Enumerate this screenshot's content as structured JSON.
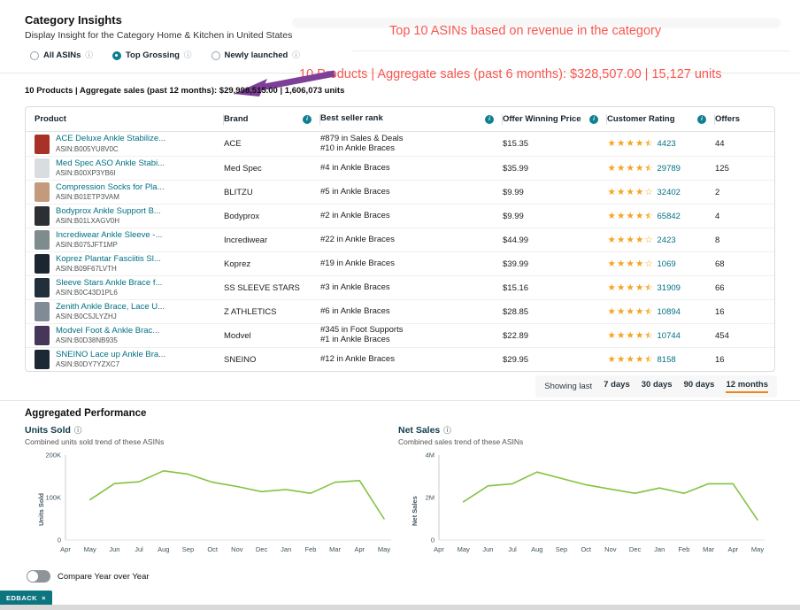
{
  "page": {
    "title": "Category Insights",
    "subtitle": "Display Insight for the Category Home & Kitchen in United States"
  },
  "icons": {
    "info": "i",
    "info_outline": "ⓘ",
    "close": "×"
  },
  "filters": {
    "options": [
      {
        "label": "All ASINs",
        "selected": false
      },
      {
        "label": "Top Grossing",
        "selected": true
      },
      {
        "label": "Newly launched",
        "selected": false
      }
    ]
  },
  "annotations": {
    "color": "#f8564f",
    "arrow_color": "#7d3f98",
    "line1": "Top 10 ASINs based on revenue in the category",
    "line2": "10 Products | Aggregate sales (past 6 months): $328,507.00 | 15,127 units"
  },
  "summary": "10 Products | Aggregate sales (past 12 months): $29,998,515.00 | 1,606,073 units",
  "table": {
    "columns": [
      "Product",
      "Brand",
      "Best seller rank",
      "Offer Winning Price",
      "Customer Rating",
      "Offers"
    ],
    "rows": [
      {
        "name": "ACE Deluxe Ankle Stabilize...",
        "asin": "ASIN:B005YU8V0C",
        "brand": "ACE",
        "rank": [
          "#879 in Sales & Deals",
          "#10 in Ankle Braces"
        ],
        "price": "$15.35",
        "rating": 4.5,
        "rating_count": "4423",
        "offers": "44",
        "thumb": "#a93226"
      },
      {
        "name": "Med Spec ASO Ankle Stabi...",
        "asin": "ASIN:B00XP3YB6I",
        "brand": "Med Spec",
        "rank": [
          "#4 in Ankle Braces"
        ],
        "price": "$35.99",
        "rating": 4.5,
        "rating_count": "29789",
        "offers": "125",
        "thumb": "#d9dde0"
      },
      {
        "name": "Compression Socks for Pla...",
        "asin": "ASIN:B01ETP3VAM",
        "brand": "BLITZU",
        "rank": [
          "#5 in Ankle Braces"
        ],
        "price": "$9.99",
        "rating": 4.0,
        "rating_count": "32402",
        "offers": "2",
        "thumb": "#c49a7c"
      },
      {
        "name": "Bodyprox Ankle Support B...",
        "asin": "ASIN:B01LXAGV0H",
        "brand": "Bodyprox",
        "rank": [
          "#2 in Ankle Braces"
        ],
        "price": "$9.99",
        "rating": 4.5,
        "rating_count": "65842",
        "offers": "4",
        "thumb": "#2c2f33"
      },
      {
        "name": "Incrediwear Ankle Sleeve -...",
        "asin": "ASIN:B075JFT1MP",
        "brand": "Incrediwear",
        "rank": [
          "#22 in Ankle Braces"
        ],
        "price": "$44.99",
        "rating": 4.0,
        "rating_count": "2423",
        "offers": "8",
        "thumb": "#7f8c8d"
      },
      {
        "name": "Koprez Plantar Fasciitis Sl...",
        "asin": "ASIN:B09F67LVTH",
        "brand": "Koprez",
        "rank": [
          "#19 in Ankle Braces"
        ],
        "price": "$39.99",
        "rating": 4.0,
        "rating_count": "1069",
        "offers": "68",
        "thumb": "#1b2631"
      },
      {
        "name": "Sleeve Stars Ankle Brace f...",
        "asin": "ASIN:B0C43D1PL6",
        "brand": "SS SLEEVE STARS",
        "rank": [
          "#3 in Ankle Braces"
        ],
        "price": "$15.16",
        "rating": 4.5,
        "rating_count": "31909",
        "offers": "66",
        "thumb": "#212f3c"
      },
      {
        "name": "Zenith Ankle Brace, Lace U...",
        "asin": "ASIN:B0C5JLYZHJ",
        "brand": "Z ATHLETICS",
        "rank": [
          "#6 in Ankle Braces"
        ],
        "price": "$28.85",
        "rating": 4.5,
        "rating_count": "10894",
        "offers": "16",
        "thumb": "#808b96"
      },
      {
        "name": "Modvel Foot & Ankle Brac...",
        "asin": "ASIN:B0D38NB935",
        "brand": "Modvel",
        "rank": [
          "#345 in Foot Supports",
          "#1 in Ankle Braces"
        ],
        "price": "$22.89",
        "rating": 4.5,
        "rating_count": "10744",
        "offers": "454",
        "thumb": "#45365a"
      },
      {
        "name": "SNEINO Lace up Ankle Bra...",
        "asin": "ASIN:B0DY7YZXC7",
        "brand": "SNEINO",
        "rank": [
          "#12 in Ankle Braces"
        ],
        "price": "$29.95",
        "rating": 4.5,
        "rating_count": "8158",
        "offers": "16",
        "thumb": "#1c2833"
      }
    ]
  },
  "time_filter": {
    "label": "Showing last",
    "options": [
      "7 days",
      "30 days",
      "90 days",
      "12 months"
    ],
    "selected": "12 months",
    "accent": "#ef8511"
  },
  "aggregated": {
    "title": "Aggregated Performance"
  },
  "chart_data": [
    {
      "type": "line",
      "title": "Units Sold",
      "subtitle": "Combined units sold trend of these ASINs",
      "ylabel": "Units Sold",
      "x": [
        "Apr",
        "May",
        "Jun",
        "Jul",
        "Aug",
        "Sep",
        "Oct",
        "Nov",
        "Dec",
        "Jan",
        "Feb",
        "Mar",
        "Apr",
        "May"
      ],
      "values": [
        null,
        95000,
        133000,
        137000,
        163000,
        155000,
        136000,
        126000,
        114000,
        119000,
        110000,
        136000,
        140000,
        50000
      ],
      "ylim": [
        0,
        200000
      ],
      "yticks": [
        {
          "v": 0,
          "label": "0"
        },
        {
          "v": 100000,
          "label": "100K"
        },
        {
          "v": 200000,
          "label": "200K"
        }
      ],
      "line_color": "#82c341",
      "grid": false,
      "legend": "none"
    },
    {
      "type": "line",
      "title": "Net Sales",
      "subtitle": "Combined sales trend of these ASINs",
      "ylabel": "Net Sales",
      "x": [
        "Apr",
        "May",
        "Jun",
        "Jul",
        "Aug",
        "Sep",
        "Oct",
        "Nov",
        "Dec",
        "Jan",
        "Feb",
        "Mar",
        "Apr",
        "May"
      ],
      "values": [
        null,
        1800000,
        2550000,
        2650000,
        3200000,
        2900000,
        2600000,
        2400000,
        2200000,
        2450000,
        2200000,
        2650000,
        2650000,
        950000
      ],
      "ylim": [
        0,
        4000000
      ],
      "yticks": [
        {
          "v": 0,
          "label": "0"
        },
        {
          "v": 2000000,
          "label": "2M"
        },
        {
          "v": 4000000,
          "label": "4M"
        }
      ],
      "line_color": "#82c341",
      "grid": false,
      "legend": "none"
    }
  ],
  "toggle": {
    "label": "Compare Year over Year",
    "on": false
  },
  "feedback": {
    "label": "EDBACK",
    "close": "×"
  }
}
